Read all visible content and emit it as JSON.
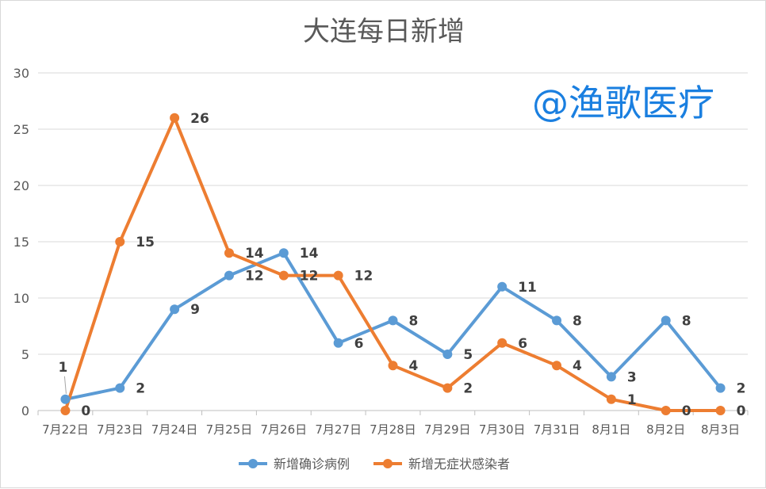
{
  "chart_data": {
    "type": "line",
    "title": "大连每日新增",
    "watermark": "@渔歌医疗",
    "categories": [
      "7月22日",
      "7月23日",
      "7月24日",
      "7月25日",
      "7月26日",
      "7月27日",
      "7月28日",
      "7月29日",
      "7月30日",
      "7月31日",
      "8月1日",
      "8月2日",
      "8月3日"
    ],
    "ylim": [
      0,
      30
    ],
    "yticks": [
      "0",
      "5",
      "10",
      "15",
      "20",
      "25",
      "30"
    ],
    "grid": true,
    "legend_position": "bottom",
    "series": [
      {
        "name": "新增确诊病例",
        "color": "#5b9bd5",
        "values": [
          1,
          2,
          9,
          12,
          14,
          6,
          8,
          5,
          11,
          8,
          3,
          8,
          2
        ],
        "labels": [
          "1",
          "2",
          "9",
          "12",
          "14",
          "6",
          "8",
          "5",
          "11",
          "8",
          "3",
          "8",
          "2"
        ]
      },
      {
        "name": "新增无症状感染者",
        "color": "#ed7d31",
        "values": [
          0,
          15,
          26,
          14,
          12,
          12,
          4,
          2,
          6,
          4,
          1,
          0,
          0
        ],
        "labels": [
          "0",
          "15",
          "26",
          "14",
          "12",
          "12",
          "4",
          "2",
          "6",
          "4",
          "1",
          "0",
          "0"
        ]
      }
    ]
  }
}
